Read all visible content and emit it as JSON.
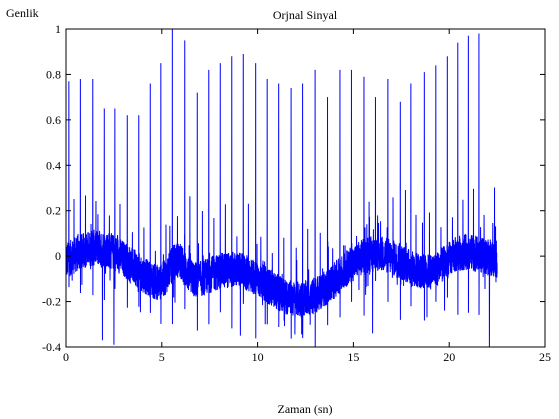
{
  "chart_data": {
    "type": "line",
    "title": "Orjnal Sinyal",
    "xlabel": "Zaman (sn)",
    "ylabel": "Genlik",
    "xlim": [
      0,
      25
    ],
    "ylim": [
      -0.4,
      1
    ],
    "xticks": [
      0,
      5,
      10,
      15,
      20,
      25
    ],
    "yticks": [
      -0.4,
      -0.2,
      0,
      0.2,
      0.4,
      0.6,
      0.8,
      1
    ],
    "grid": false,
    "series": [
      {
        "color": "#0000ff",
        "signal_duration": 22.5,
        "peaks": [
          {
            "x": 0.15,
            "y": 0.77
          },
          {
            "x": 0.75,
            "y": 0.78
          },
          {
            "x": 1.4,
            "y": 0.78
          },
          {
            "x": 2.0,
            "y": 0.65
          },
          {
            "x": 2.55,
            "y": 0.65
          },
          {
            "x": 3.2,
            "y": 0.62
          },
          {
            "x": 3.8,
            "y": 0.62
          },
          {
            "x": 4.4,
            "y": 0.76
          },
          {
            "x": 4.95,
            "y": 0.85
          },
          {
            "x": 5.55,
            "y": 1.0
          },
          {
            "x": 6.2,
            "y": 0.95
          },
          {
            "x": 6.85,
            "y": 0.72
          },
          {
            "x": 7.45,
            "y": 0.82
          },
          {
            "x": 8.05,
            "y": 0.85
          },
          {
            "x": 8.65,
            "y": 0.88
          },
          {
            "x": 9.25,
            "y": 0.89
          },
          {
            "x": 9.9,
            "y": 0.85
          },
          {
            "x": 10.5,
            "y": 0.78
          },
          {
            "x": 11.1,
            "y": 0.76
          },
          {
            "x": 11.75,
            "y": 0.74
          },
          {
            "x": 12.35,
            "y": 0.76
          },
          {
            "x": 13.0,
            "y": 0.82
          },
          {
            "x": 13.65,
            "y": 0.7
          },
          {
            "x": 14.3,
            "y": 0.82
          },
          {
            "x": 14.9,
            "y": 0.82
          },
          {
            "x": 15.55,
            "y": 0.79
          },
          {
            "x": 16.15,
            "y": 0.7
          },
          {
            "x": 16.8,
            "y": 0.78
          },
          {
            "x": 17.45,
            "y": 0.68
          },
          {
            "x": 18.0,
            "y": 0.76
          },
          {
            "x": 18.7,
            "y": 0.81
          },
          {
            "x": 19.3,
            "y": 0.84
          },
          {
            "x": 19.9,
            "y": 0.88
          },
          {
            "x": 20.45,
            "y": 0.94
          },
          {
            "x": 21.0,
            "y": 0.97
          },
          {
            "x": 21.55,
            "y": 0.98
          },
          {
            "x": 22.1,
            "y": 0.99
          }
        ]
      }
    ]
  }
}
